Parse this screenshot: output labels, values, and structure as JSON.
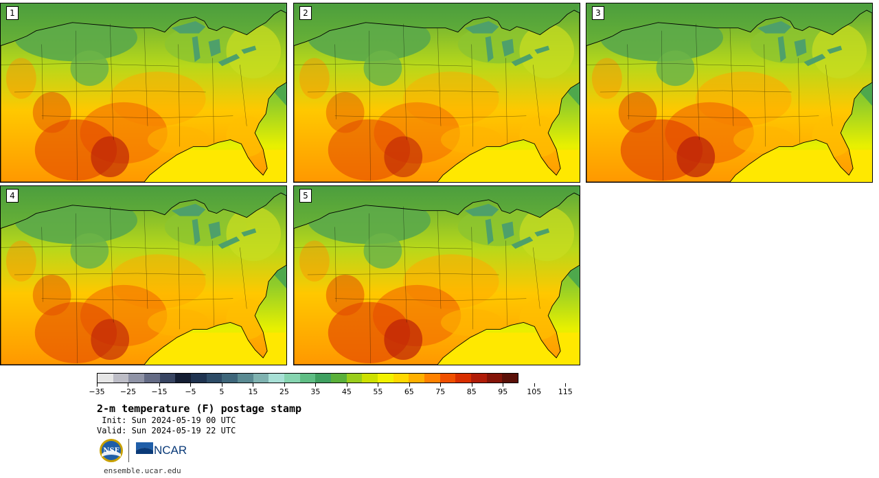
{
  "panels": [
    {
      "label": "1",
      "heat": 0.9
    },
    {
      "label": "2",
      "heat": 0.8
    },
    {
      "label": "3",
      "heat": 1.0
    },
    {
      "label": "4",
      "heat": 0.85
    },
    {
      "label": "5",
      "heat": 0.95
    }
  ],
  "colorbar": {
    "colors": [
      "#e6e6e6",
      "#bdbdc6",
      "#8f93a6",
      "#646b85",
      "#384562",
      "#141e33",
      "#1f3350",
      "#2d4b66",
      "#3e667a",
      "#5a8a92",
      "#7fb2b0",
      "#a8e0d6",
      "#86d4b0",
      "#5fbd84",
      "#3fa060",
      "#5ab03a",
      "#9acd1c",
      "#cde000",
      "#f2f200",
      "#ffd800",
      "#ffb000",
      "#ff8200",
      "#f05000",
      "#d82e00",
      "#b01c08",
      "#841408",
      "#5a1008"
    ],
    "ticks": [
      "−35",
      "−25",
      "−15",
      "−5",
      "5",
      "15",
      "25",
      "35",
      "45",
      "55",
      "65",
      "75",
      "85",
      "95",
      "105",
      "115"
    ]
  },
  "title": "2-m temperature (F) postage stamp",
  "init": " Init: Sun 2024-05-19 00 UTC",
  "valid": "Valid: Sun 2024-05-19 22 UTC",
  "logos": {
    "nsf": "NSF",
    "ncar": "NCAR"
  },
  "website": "ensemble.ucar.edu"
}
